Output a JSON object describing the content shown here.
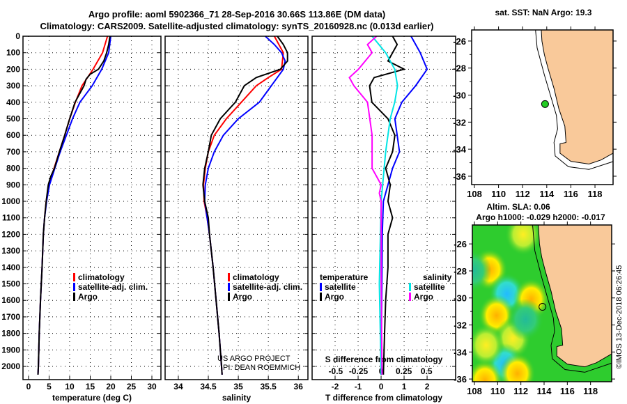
{
  "title": {
    "line1": "Argo profile: aoml 5902366_71 28-Sep-2016 30.66S 113.86E (DM data)",
    "line2": "Climatology: CARS2009. Satellite-adjusted climatology: synTS_20160928.nc (0.013d earlier)"
  },
  "credit": {
    "line1": "US ARGO PROJECT",
    "line2": "PI: DEAN ROEMMICH"
  },
  "timestamp": "©IMOS 13-Dec-2018 06:26:45",
  "colors": {
    "climatology": "#ff0000",
    "satellite": "#0000ff",
    "argo": "#000000",
    "sal_satellite": "#00e5e5",
    "sal_argo": "#ff00ff",
    "land": "#f9c99a",
    "sla_base": "#2ecc2e"
  },
  "chart_data": [
    {
      "type": "line",
      "id": "temperature",
      "xlabel": "temperature (deg C)",
      "ylabel": "",
      "xlim": [
        -1.35,
        32.2
      ],
      "ylim": [
        2080,
        0
      ],
      "xticks": [
        0,
        5,
        10,
        15,
        20,
        25,
        30
      ],
      "yticks": [
        0,
        100,
        200,
        300,
        400,
        500,
        600,
        700,
        800,
        900,
        1000,
        1100,
        1200,
        1300,
        1400,
        1500,
        1600,
        1700,
        1800,
        1900,
        2000
      ],
      "legend": [
        "climatology",
        "satellite-adj. clim.",
        "Argo"
      ],
      "series": [
        {
          "name": "climatology",
          "color": "#ff0000",
          "points": [
            [
              0,
              19.2
            ],
            [
              100,
              18.0
            ],
            [
              200,
              15.7
            ],
            [
              300,
              13.0
            ],
            [
              400,
              11.4
            ],
            [
              500,
              10.0
            ],
            [
              600,
              8.8
            ],
            [
              700,
              7.5
            ],
            [
              800,
              6.2
            ],
            [
              900,
              5.0
            ],
            [
              1000,
              4.3
            ],
            [
              1100,
              3.9
            ],
            [
              1200,
              3.6
            ],
            [
              1400,
              3.3
            ],
            [
              1600,
              2.9
            ],
            [
              1800,
              2.6
            ],
            [
              2000,
              2.4
            ],
            [
              2050,
              2.3
            ]
          ]
        },
        {
          "name": "satellite-adj. clim.",
          "color": "#0000ff",
          "points": [
            [
              0,
              20.0
            ],
            [
              100,
              19.5
            ],
            [
              200,
              17.8
            ],
            [
              300,
              15.5
            ],
            [
              400,
              12.5
            ],
            [
              500,
              10.7
            ],
            [
              600,
              9.2
            ],
            [
              700,
              7.7
            ],
            [
              800,
              6.4
            ],
            [
              900,
              5.1
            ],
            [
              1000,
              4.4
            ],
            [
              1100,
              3.9
            ],
            [
              1200,
              3.6
            ],
            [
              1400,
              3.3
            ],
            [
              1600,
              2.9
            ],
            [
              1800,
              2.6
            ],
            [
              2000,
              2.4
            ],
            [
              2050,
              2.3
            ]
          ]
        },
        {
          "name": "Argo",
          "color": "#000000",
          "points": [
            [
              0,
              19.8
            ],
            [
              50,
              19.5
            ],
            [
              100,
              19.0
            ],
            [
              150,
              18.3
            ],
            [
              200,
              17.0
            ],
            [
              230,
              15.0
            ],
            [
              260,
              14.0
            ],
            [
              300,
              13.5
            ],
            [
              400,
              11.3
            ],
            [
              500,
              10.0
            ],
            [
              600,
              8.8
            ],
            [
              700,
              7.5
            ],
            [
              800,
              6.3
            ],
            [
              850,
              5.4
            ],
            [
              900,
              4.8
            ],
            [
              1000,
              4.3
            ],
            [
              1100,
              3.9
            ],
            [
              1200,
              3.6
            ],
            [
              1400,
              3.3
            ],
            [
              1600,
              2.9
            ],
            [
              1800,
              2.6
            ],
            [
              2000,
              2.4
            ],
            [
              2050,
              2.3
            ]
          ]
        }
      ]
    },
    {
      "type": "line",
      "id": "salinity",
      "xlabel": "salinity",
      "xlim": [
        33.78,
        36.16
      ],
      "ylim": [
        2080,
        0
      ],
      "xticks": [
        34,
        34.5,
        35,
        35.5,
        36
      ],
      "legend": [
        "climatology",
        "satellite-adj. clim.",
        "Argo"
      ],
      "series": [
        {
          "name": "climatology",
          "color": "#ff0000",
          "points": [
            [
              0,
              35.6
            ],
            [
              100,
              35.75
            ],
            [
              200,
              35.72
            ],
            [
              250,
              35.5
            ],
            [
              300,
              35.3
            ],
            [
              400,
              35.05
            ],
            [
              500,
              34.8
            ],
            [
              600,
              34.6
            ],
            [
              700,
              34.5
            ],
            [
              800,
              34.45
            ],
            [
              900,
              34.42
            ],
            [
              1000,
              34.43
            ],
            [
              1100,
              34.48
            ],
            [
              1200,
              34.52
            ],
            [
              1400,
              34.58
            ],
            [
              1600,
              34.63
            ],
            [
              1800,
              34.68
            ],
            [
              2000,
              34.72
            ],
            [
              2050,
              34.73
            ]
          ]
        },
        {
          "name": "satellite-adj. clim.",
          "color": "#0000ff",
          "points": [
            [
              0,
              35.45
            ],
            [
              50,
              35.6
            ],
            [
              100,
              35.72
            ],
            [
              150,
              35.78
            ],
            [
              200,
              35.75
            ],
            [
              300,
              35.55
            ],
            [
              400,
              35.35
            ],
            [
              500,
              35.0
            ],
            [
              600,
              34.75
            ],
            [
              700,
              34.6
            ],
            [
              800,
              34.5
            ],
            [
              900,
              34.45
            ],
            [
              1000,
              34.44
            ],
            [
              1100,
              34.48
            ],
            [
              1200,
              34.52
            ],
            [
              1400,
              34.58
            ],
            [
              1600,
              34.63
            ],
            [
              1800,
              34.68
            ],
            [
              2000,
              34.72
            ],
            [
              2050,
              34.73
            ]
          ]
        },
        {
          "name": "Argo",
          "color": "#000000",
          "points": [
            [
              0,
              35.65
            ],
            [
              50,
              35.75
            ],
            [
              100,
              35.82
            ],
            [
              150,
              35.82
            ],
            [
              200,
              35.7
            ],
            [
              250,
              35.3
            ],
            [
              300,
              35.1
            ],
            [
              400,
              34.95
            ],
            [
              500,
              34.7
            ],
            [
              600,
              34.55
            ],
            [
              700,
              34.5
            ],
            [
              800,
              34.44
            ],
            [
              900,
              34.41
            ],
            [
              1000,
              34.44
            ],
            [
              1100,
              34.5
            ],
            [
              1200,
              34.52
            ],
            [
              1400,
              34.58
            ],
            [
              1600,
              34.63
            ],
            [
              1800,
              34.68
            ],
            [
              2000,
              34.72
            ],
            [
              2050,
              34.73
            ]
          ]
        }
      ]
    },
    {
      "type": "line",
      "id": "difference",
      "xlabel": "T difference from climatology",
      "x2label": "S difference from climatology",
      "xlim": [
        -3.0,
        3.24
      ],
      "x2lim": [
        -0.76,
        0.82
      ],
      "ylim": [
        2080,
        0
      ],
      "xticks": [
        -2,
        -1,
        0,
        1,
        2
      ],
      "x2ticks": [
        -0.5,
        -0.25,
        0,
        0.25,
        0.5
      ],
      "legend_temperature": {
        "title": "temperature",
        "items": [
          "satellite",
          "Argo"
        ]
      },
      "legend_salinity": {
        "title": "salinity",
        "items": [
          "satellite",
          "Argo"
        ]
      },
      "series": [
        {
          "name": "temperature satellite",
          "axis": "T",
          "color": "#0000ff",
          "points": [
            [
              0,
              1.3
            ],
            [
              100,
              1.7
            ],
            [
              200,
              2.0
            ],
            [
              300,
              1.5
            ],
            [
              400,
              0.9
            ],
            [
              500,
              0.6
            ],
            [
              600,
              0.7
            ],
            [
              700,
              0.8
            ],
            [
              800,
              0.5
            ],
            [
              900,
              0.3
            ],
            [
              1000,
              0.1
            ],
            [
              1200,
              0.05
            ],
            [
              2050,
              0.0
            ]
          ]
        },
        {
          "name": "temperature Argo",
          "axis": "T",
          "color": "#000000",
          "points": [
            [
              0,
              0.5
            ],
            [
              50,
              0.7
            ],
            [
              100,
              0.5
            ],
            [
              150,
              0.3
            ],
            [
              200,
              1.0
            ],
            [
              250,
              -0.3
            ],
            [
              300,
              -0.5
            ],
            [
              400,
              -0.4
            ],
            [
              500,
              0.3
            ],
            [
              600,
              0.6
            ],
            [
              700,
              0.5
            ],
            [
              800,
              0.2
            ],
            [
              900,
              0.4
            ],
            [
              1000,
              0.3
            ],
            [
              1100,
              0.5
            ],
            [
              1200,
              0.3
            ],
            [
              1400,
              0.3
            ],
            [
              1600,
              0.2
            ],
            [
              1800,
              0.15
            ],
            [
              2050,
              0.1
            ]
          ]
        },
        {
          "name": "salinity satellite",
          "axis": "S",
          "color": "#00e5e5",
          "points": [
            [
              0,
              -0.1
            ],
            [
              100,
              0.05
            ],
            [
              200,
              0.15
            ],
            [
              300,
              0.18
            ],
            [
              400,
              0.15
            ],
            [
              500,
              0.1
            ],
            [
              700,
              0.05
            ],
            [
              1000,
              0.0
            ],
            [
              1500,
              -0.02
            ],
            [
              2050,
              0.0
            ]
          ]
        },
        {
          "name": "salinity Argo",
          "axis": "S",
          "color": "#ff00ff",
          "points": [
            [
              0,
              -0.05
            ],
            [
              50,
              -0.15
            ],
            [
              100,
              -0.1
            ],
            [
              200,
              -0.25
            ],
            [
              250,
              -0.35
            ],
            [
              300,
              -0.3
            ],
            [
              400,
              -0.15
            ],
            [
              600,
              -0.1
            ],
            [
              800,
              -0.1
            ],
            [
              900,
              0.0
            ],
            [
              950,
              -0.02
            ],
            [
              1000,
              0.0
            ],
            [
              1500,
              0.0
            ],
            [
              2050,
              0.01
            ]
          ]
        }
      ]
    },
    {
      "type": "map",
      "id": "sst-map",
      "title": "sat. SST: NaN Argo: 19.3",
      "lonlim": [
        107.77,
        119.5
      ],
      "latlim": [
        -36.62,
        -25.18
      ],
      "lonticks": [
        108,
        110,
        112,
        114,
        116,
        118
      ],
      "latticks": [
        -26,
        -28,
        -30,
        -32,
        -34,
        -36
      ],
      "float": [
        113.86,
        -30.66
      ]
    },
    {
      "type": "map",
      "id": "sla-map",
      "title1": "Altim. SLA: 0.06",
      "title2": "Argo h1000: -0.029 h2000: -0.017",
      "lonlim": [
        107.82,
        119.82
      ],
      "latlim": [
        -36.2,
        -24.6
      ],
      "lonticks": [
        108,
        110,
        112,
        114,
        116,
        118
      ],
      "latticks": [
        -26,
        -28,
        -30,
        -32,
        -34,
        -36
      ],
      "float": [
        113.86,
        -30.66
      ],
      "anomalies": [
        {
          "lon": 109.3,
          "lat": -27.9,
          "kind": "high"
        },
        {
          "lon": 110.8,
          "lat": -29.7,
          "kind": "low"
        },
        {
          "lon": 112.9,
          "lat": -30.1,
          "kind": "high"
        },
        {
          "lon": 109.9,
          "lat": -31.3,
          "kind": "high"
        },
        {
          "lon": 111.3,
          "lat": -33.0,
          "kind": "mid"
        },
        {
          "lon": 110.6,
          "lat": -34.9,
          "kind": "low"
        },
        {
          "lon": 108.9,
          "lat": -36.1,
          "kind": "high"
        },
        {
          "lon": 111.7,
          "lat": -35.6,
          "kind": "high"
        },
        {
          "lon": 112.4,
          "lat": -31.6,
          "kind": "teal"
        },
        {
          "lon": 107.9,
          "lat": -28.0,
          "kind": "teal"
        },
        {
          "lon": 109.0,
          "lat": -33.5,
          "kind": "mid"
        },
        {
          "lon": 112.2,
          "lat": -25.3,
          "kind": "mid"
        }
      ]
    }
  ],
  "coast": [
    [
      113.5,
      -24.5
    ],
    [
      113.6,
      -26.0
    ],
    [
      113.8,
      -27.0
    ],
    [
      114.1,
      -28.0
    ],
    [
      114.6,
      -29.5
    ],
    [
      115.0,
      -31.0
    ],
    [
      115.5,
      -32.3
    ],
    [
      115.6,
      -33.5
    ],
    [
      115.1,
      -33.6
    ],
    [
      115.1,
      -34.3
    ],
    [
      116.0,
      -34.9
    ],
    [
      117.5,
      -35.1
    ],
    [
      118.5,
      -34.8
    ],
    [
      119.9,
      -34.1
    ],
    [
      119.9,
      -24.5
    ]
  ],
  "shelf": [
    [
      113.0,
      -24.5
    ],
    [
      113.2,
      -26.5
    ],
    [
      113.8,
      -28.5
    ],
    [
      114.3,
      -30.0
    ],
    [
      114.8,
      -31.5
    ],
    [
      114.9,
      -32.5
    ],
    [
      114.6,
      -33.5
    ],
    [
      114.7,
      -34.5
    ],
    [
      115.8,
      -35.3
    ],
    [
      117.5,
      -35.5
    ],
    [
      119.9,
      -34.8
    ]
  ]
}
